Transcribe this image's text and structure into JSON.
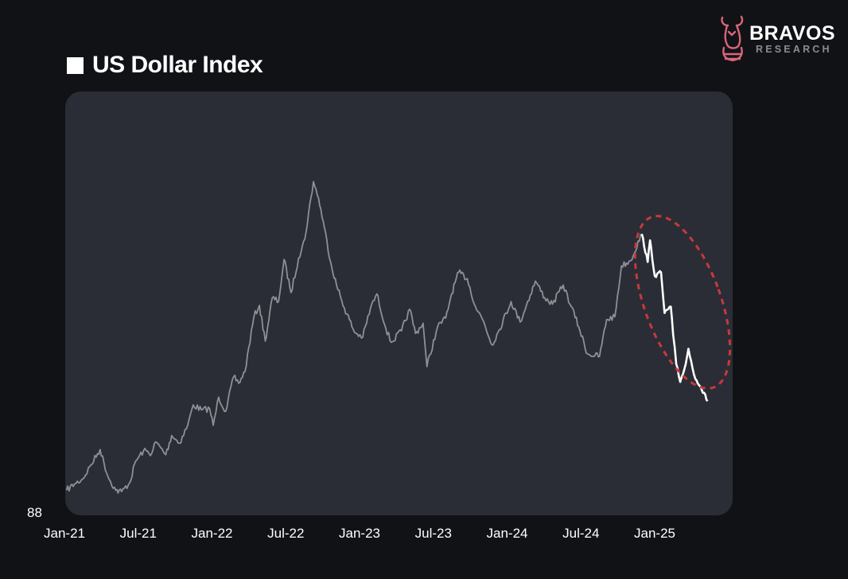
{
  "header": {
    "title": "US Dollar Index"
  },
  "brand": {
    "name": "BRAVOS",
    "subtitle": "RESEARCH",
    "logo_icon": "bull-horse-icon",
    "logo_color": "#d9667a"
  },
  "colors": {
    "background": "#111216",
    "plot_background": "#2a2d35",
    "history_line": "#8e9095",
    "highlight_line": "#ffffff",
    "highlight_ellipse": "#c8383c"
  },
  "chart_data": {
    "type": "line",
    "title": "US Dollar Index",
    "xlabel": "",
    "ylabel": "",
    "grid": false,
    "legend": "none",
    "x_tick_labels": [
      "Jan-21",
      "Jul-21",
      "Jan-22",
      "Jul-22",
      "Jan-23",
      "Jul-23",
      "Jan-24",
      "Jul-24",
      "Jan-25"
    ],
    "y_tick_labels": [
      "88"
    ],
    "ylim": [
      88,
      114
    ],
    "xlim": [
      "2021-01-01",
      "2025-07-01"
    ],
    "series": [
      {
        "style": "history",
        "x": [
          "2021-01-04",
          "2021-01-25",
          "2021-02-15",
          "2021-03-08",
          "2021-03-31",
          "2021-04-20",
          "2021-05-10",
          "2021-05-25",
          "2021-06-15",
          "2021-06-30",
          "2021-07-20",
          "2021-08-10",
          "2021-08-20",
          "2021-09-15",
          "2021-09-30",
          "2021-10-20",
          "2021-11-10",
          "2021-11-24",
          "2021-12-15",
          "2022-01-05",
          "2022-01-14",
          "2022-01-28",
          "2022-02-15",
          "2022-03-07",
          "2022-03-20",
          "2022-04-05",
          "2022-04-28",
          "2022-05-12",
          "2022-05-27",
          "2022-06-14",
          "2022-06-30",
          "2022-07-14",
          "2022-08-01",
          "2022-08-20",
          "2022-09-05",
          "2022-09-27",
          "2022-10-10",
          "2022-10-25",
          "2022-11-10",
          "2022-11-25",
          "2022-12-15",
          "2023-01-10",
          "2023-01-31",
          "2023-02-20",
          "2023-03-08",
          "2023-03-31",
          "2023-04-14",
          "2023-05-10",
          "2023-05-31",
          "2023-06-15",
          "2023-07-04",
          "2023-07-14",
          "2023-08-10",
          "2023-08-31",
          "2023-09-15",
          "2023-10-03",
          "2023-10-25",
          "2023-11-15",
          "2023-12-05",
          "2023-12-27",
          "2024-01-15",
          "2024-02-14",
          "2024-03-08",
          "2024-04-16",
          "2024-05-10",
          "2024-05-30",
          "2024-06-26",
          "2024-07-17",
          "2024-08-05",
          "2024-08-27",
          "2024-09-27",
          "2024-10-15",
          "2024-11-05",
          "2024-11-22",
          "2024-12-15",
          "2025-01-13"
        ],
        "y": [
          89.9,
          90.4,
          90.8,
          91.9,
          93.1,
          91.0,
          89.9,
          89.8,
          90.5,
          92.2,
          93.0,
          92.8,
          93.7,
          92.7,
          94.2,
          93.6,
          95.0,
          96.6,
          96.2,
          96.3,
          95.0,
          97.2,
          96.1,
          98.8,
          98.3,
          99.2,
          103.5,
          104.4,
          101.6,
          105.0,
          104.7,
          108.0,
          105.4,
          108.1,
          109.6,
          114.1,
          112.8,
          110.5,
          107.8,
          106.0,
          104.2,
          102.3,
          101.9,
          104.2,
          105.3,
          102.6,
          101.5,
          102.4,
          104.1,
          102.2,
          103.0,
          99.6,
          102.7,
          103.4,
          105.3,
          107.0,
          106.5,
          104.3,
          103.2,
          101.3,
          102.5,
          104.7,
          103.1,
          106.3,
          105.0,
          104.5,
          106.0,
          104.3,
          102.7,
          100.6,
          100.4,
          103.3,
          103.5,
          107.5,
          107.9,
          110.0
        ],
        "color": "#8e9095"
      },
      {
        "style": "highlight",
        "x": [
          "2025-01-13",
          "2025-01-28",
          "2025-02-03",
          "2025-02-15",
          "2025-03-03",
          "2025-03-12",
          "2025-03-28",
          "2025-04-03",
          "2025-04-11",
          "2025-04-21",
          "2025-05-05",
          "2025-05-12",
          "2025-05-26",
          "2025-06-12",
          "2025-06-30"
        ],
        "y": [
          110.0,
          107.8,
          109.5,
          106.7,
          107.0,
          103.8,
          104.3,
          102.1,
          99.8,
          98.4,
          99.8,
          101.0,
          99.0,
          98.0,
          96.9
        ],
        "color": "#ffffff"
      }
    ]
  }
}
